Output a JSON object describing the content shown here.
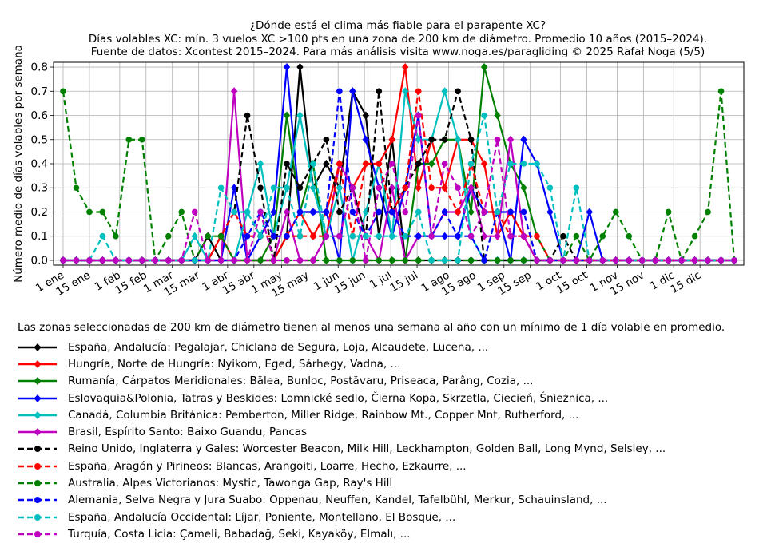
{
  "chart_data": {
    "type": "line",
    "title": [
      "¿Dónde está el clima más fiable para el parapente XC?",
      "Días volables XC: mín. 3 vuelos XC >100 pts en una zona de 200 km de diámetro. Promedio 10 años (2015–2024).",
      "Fuente de datos: Xcontest 2015–2024. Para más análisis visita www.noga.es/paragliding © 2025 Rafał Noga (5/5)"
    ],
    "ylabel": "Número medio de días volables por semana",
    "xlabel": "",
    "ylim": [
      -0.02,
      0.82
    ],
    "yticks": [
      0.0,
      0.1,
      0.2,
      0.3,
      0.4,
      0.5,
      0.6,
      0.7,
      0.8
    ],
    "ytick_labels": [
      "0.0",
      "0.1",
      "0.2",
      "0.3",
      "0.4",
      "0.5",
      "0.6",
      "0.7",
      "0.8"
    ],
    "xlim": [
      1,
      52
    ],
    "xticks": [
      1,
      3,
      5.3,
      7.3,
      9.3,
      11.3,
      13.5,
      15.5,
      17.6,
      19.6,
      21.9,
      23.9,
      25.9,
      27.9,
      30.3,
      32.3,
      34.5,
      36.5,
      38.8,
      40.8,
      43.1,
      45.1,
      47.4,
      49.4
    ],
    "xtick_labels": [
      "1 ene",
      "15 ene",
      "1 feb",
      "15 feb",
      "1 mar",
      "15 mar",
      "1 abr",
      "15 abr",
      "1 may",
      "15 may",
      "1 jun",
      "15 jun",
      "1 jul",
      "15 jul",
      "1 ago",
      "15 ago",
      "1 sep",
      "15 sep",
      "1 oct",
      "15 oct",
      "1 nov",
      "15 nov",
      "1 dic",
      "15 dic"
    ],
    "grid": true,
    "legend_placement": "below",
    "legend_note": "Las zonas seleccionadas de 200 km de diámetro tienen al menos una semana al año con un mínimo de 1 día volable en promedio.",
    "x": [
      1,
      2,
      3,
      4,
      5,
      6,
      7,
      8,
      9,
      10,
      11,
      12,
      13,
      14,
      15,
      16,
      17,
      18,
      19,
      20,
      21,
      22,
      23,
      24,
      25,
      26,
      27,
      28,
      29,
      30,
      31,
      32,
      33,
      34,
      35,
      36,
      37,
      38,
      39,
      40,
      41,
      42,
      43,
      44,
      45,
      46,
      47,
      48,
      49,
      50,
      51,
      52
    ],
    "series": [
      {
        "name": "España, Andalucía: Pegalajar, Chiclana de Segura, Loja, Alcaudete, Lucena, ...",
        "color": "#000000",
        "dash": "solid",
        "marker": "diamond",
        "values": [
          0,
          0,
          0,
          0,
          0,
          0,
          0,
          0,
          0,
          0,
          0,
          0.1,
          0,
          0,
          0,
          0,
          0,
          0.1,
          0.8,
          0.3,
          0.4,
          0.3,
          0.7,
          0.6,
          0.1,
          0.5,
          0,
          0,
          0,
          0,
          0,
          0,
          0,
          0,
          0,
          0,
          0,
          0,
          0,
          0,
          0,
          0,
          0,
          0,
          0,
          0,
          0,
          0,
          0,
          0,
          0,
          0
        ]
      },
      {
        "name": "Hungría, Norte de Hungría: Nyikom, Eged, Sárhegy, Vadna, ...",
        "color": "#ff0000",
        "dash": "solid",
        "marker": "diamond",
        "values": [
          0,
          0,
          0,
          0,
          0,
          0,
          0,
          0,
          0,
          0,
          0,
          0,
          0.1,
          0,
          0,
          0,
          0,
          0.1,
          0.2,
          0.1,
          0.2,
          0.4,
          0.3,
          0.4,
          0.4,
          0.5,
          0.8,
          0.3,
          0.5,
          0.3,
          0.5,
          0.5,
          0.4,
          0.1,
          0.2,
          0.1,
          0,
          0,
          0,
          0,
          0,
          0,
          0,
          0,
          0,
          0,
          0,
          0,
          0,
          0,
          0,
          0
        ]
      },
      {
        "name": "Rumanía, Cárpatos Meridionales: Bălea, Bunloc, Postăvaru, Priseaca, Parâng, Cozia, ...",
        "color": "#008000",
        "dash": "solid",
        "marker": "diamond",
        "values": [
          0,
          0,
          0,
          0,
          0,
          0,
          0,
          0,
          0,
          0,
          0,
          0,
          0,
          0,
          0,
          0,
          0.1,
          0.6,
          0.2,
          0.4,
          0,
          0,
          0,
          0,
          0,
          0,
          0,
          0.4,
          0.4,
          0.5,
          0.5,
          0.2,
          0.8,
          0.6,
          0.4,
          0.3,
          0.1,
          0,
          0,
          0,
          0,
          0,
          0,
          0,
          0,
          0,
          0,
          0,
          0,
          0,
          0,
          0
        ]
      },
      {
        "name": "Eslovaquia&Polonia, Tatras y Beskides: Lomnické sedlo, Čierna Kopa, Skrzetla, Ciecień, Śnieżnica, ...",
        "color": "#0000ff",
        "dash": "solid",
        "marker": "diamond",
        "values": [
          0,
          0,
          0,
          0,
          0,
          0,
          0,
          0,
          0,
          0,
          0,
          0,
          0,
          0.3,
          0,
          0.1,
          0.2,
          0.8,
          0.2,
          0.2,
          0.2,
          0,
          0.7,
          0.5,
          0.3,
          0.1,
          0.3,
          0.6,
          0.1,
          0.1,
          0.1,
          0.3,
          0.2,
          0.2,
          0,
          0.5,
          0.4,
          0.2,
          0,
          0,
          0.2,
          0,
          0,
          0,
          0,
          0,
          0,
          0,
          0,
          0,
          0,
          0
        ]
      },
      {
        "name": "Canadá, Columbia Británica: Pemberton, Miller Ridge, Rainbow Mt., Copper Mnt, Rutherford, ...",
        "color": "#00bfbf",
        "dash": "solid",
        "marker": "diamond",
        "values": [
          0,
          0,
          0,
          0,
          0,
          0,
          0,
          0,
          0,
          0,
          0.1,
          0,
          0,
          0,
          0.2,
          0.4,
          0.1,
          0.3,
          0.6,
          0.3,
          0.1,
          0.3,
          0,
          0.2,
          0.4,
          0.1,
          0.7,
          0.5,
          0.5,
          0.7,
          0.5,
          0.1,
          0,
          0,
          0,
          0,
          0,
          0,
          0,
          0,
          0,
          0,
          0,
          0,
          0,
          0,
          0,
          0,
          0,
          0,
          0,
          0
        ]
      },
      {
        "name": "Brasil, Espírito Santo: Baixo Guandu, Pancas",
        "color": "#bf00bf",
        "dash": "solid",
        "marker": "diamond",
        "values": [
          0,
          0,
          0,
          0,
          0,
          0,
          0,
          0,
          0,
          0,
          0,
          0,
          0,
          0.7,
          0,
          0,
          0,
          0.2,
          0,
          0,
          0.1,
          0.4,
          0.3,
          0.1,
          0,
          0.3,
          0,
          0.1,
          0.1,
          0.2,
          0.2,
          0.3,
          0.1,
          0.1,
          0.5,
          0.1,
          0,
          0,
          0,
          0,
          0,
          0,
          0,
          0,
          0,
          0,
          0,
          0,
          0,
          0,
          0,
          0
        ]
      },
      {
        "name": "Reino Unido, Inglaterra y Gales: Worcester Beacon, Milk Hill, Leckhampton, Golden Ball, Long Mynd, Selsley, ...",
        "color": "#000000",
        "dash": "dashed",
        "marker": "circle",
        "values": [
          0,
          0,
          0,
          0,
          0,
          0,
          0,
          0,
          0,
          0,
          0,
          0,
          0.1,
          0.2,
          0.6,
          0.3,
          0,
          0.4,
          0.3,
          0.4,
          0.5,
          0.2,
          0.3,
          0.1,
          0.7,
          0.2,
          0.3,
          0.4,
          0.5,
          0.5,
          0.7,
          0.5,
          0,
          0,
          0,
          0,
          0,
          0,
          0.1,
          0,
          0,
          0,
          0,
          0,
          0,
          0,
          0,
          0,
          0,
          0,
          0,
          0
        ]
      },
      {
        "name": "España, Aragón y Pirineos: Blancas, Arangoiti, Loarre, Hecho, Ezkaurre, ...",
        "color": "#ff0000",
        "dash": "dashed",
        "marker": "circle",
        "values": [
          0,
          0,
          0,
          0,
          0,
          0,
          0,
          0,
          0,
          0,
          0,
          0,
          0.1,
          0.2,
          0.1,
          0.1,
          0.1,
          0.1,
          0.1,
          0.1,
          0.1,
          0.4,
          0.1,
          0.4,
          0.4,
          0.2,
          0.3,
          0.7,
          0.3,
          0.3,
          0.2,
          0.4,
          0.2,
          0.2,
          0.1,
          0.1,
          0.1,
          0,
          0,
          0,
          0,
          0,
          0,
          0,
          0,
          0,
          0,
          0,
          0,
          0,
          0,
          0
        ]
      },
      {
        "name": "Australia, Alpes Victorianos: Mystic, Tawonga Gap, Ray's Hill",
        "color": "#008000",
        "dash": "dashed",
        "marker": "circle",
        "values": [
          0.7,
          0.3,
          0.2,
          0.2,
          0.1,
          0.5,
          0.5,
          0,
          0.1,
          0.2,
          0,
          0.1,
          0.1,
          0,
          0,
          0,
          0,
          0,
          0,
          0,
          0,
          0,
          0,
          0,
          0,
          0,
          0,
          0,
          0,
          0,
          0,
          0,
          0,
          0,
          0,
          0,
          0,
          0,
          0,
          0.1,
          0,
          0.1,
          0.2,
          0.1,
          0,
          0,
          0.2,
          0,
          0.1,
          0.2,
          0.7,
          0
        ]
      },
      {
        "name": "Alemania, Selva Negra y Jura Suabo: Oppenau, Neuffen, Kandel, Tafelbühl, Merkur, Schauinsland, ...",
        "color": "#0000ff",
        "dash": "dashed",
        "marker": "circle",
        "values": [
          0,
          0,
          0,
          0,
          0,
          0,
          0,
          0,
          0,
          0,
          0,
          0,
          0,
          0,
          0.1,
          0.2,
          0.1,
          0.1,
          0.2,
          0.2,
          0.2,
          0.7,
          0.2,
          0.1,
          0.2,
          0.2,
          0.1,
          0.1,
          0.1,
          0.2,
          0.1,
          0.1,
          0,
          0.2,
          0.2,
          0.2,
          0,
          0,
          0,
          0,
          0,
          0,
          0,
          0,
          0,
          0,
          0,
          0,
          0,
          0,
          0,
          0
        ]
      },
      {
        "name": "España, Andalucía Occidental: Líjar, Poniente, Montellano, El Bosque, ...",
        "color": "#00bfbf",
        "dash": "dashed",
        "marker": "circle",
        "values": [
          0,
          0,
          0,
          0.1,
          0,
          0,
          0,
          0,
          0,
          0,
          0,
          0,
          0.3,
          0.2,
          0.2,
          0.1,
          0.3,
          0.3,
          0.1,
          0.4,
          0.1,
          0.1,
          0.1,
          0.1,
          0.1,
          0.1,
          0.1,
          0.2,
          0,
          0,
          0,
          0.4,
          0.6,
          0.2,
          0.4,
          0.4,
          0.4,
          0.3,
          0,
          0.3,
          0,
          0,
          0,
          0,
          0,
          0,
          0,
          0,
          0,
          0,
          0,
          0
        ]
      },
      {
        "name": "Turquía, Costa Licia: Çameli, Babadağ, Seki, Kayaköy, Elmalı, ...",
        "color": "#bf00bf",
        "dash": "dashed",
        "marker": "circle",
        "values": [
          0,
          0,
          0,
          0,
          0,
          0,
          0,
          0,
          0,
          0,
          0.2,
          0,
          0,
          0,
          0,
          0.2,
          0,
          0,
          0,
          0,
          0.1,
          0.1,
          0.3,
          0,
          0.3,
          0.4,
          0.2,
          0.6,
          0.1,
          0.4,
          0.3,
          0.1,
          0.2,
          0.5,
          0.1,
          0.1,
          0,
          0,
          0,
          0,
          0,
          0,
          0,
          0,
          0,
          0,
          0,
          0,
          0,
          0,
          0,
          0
        ]
      }
    ]
  }
}
